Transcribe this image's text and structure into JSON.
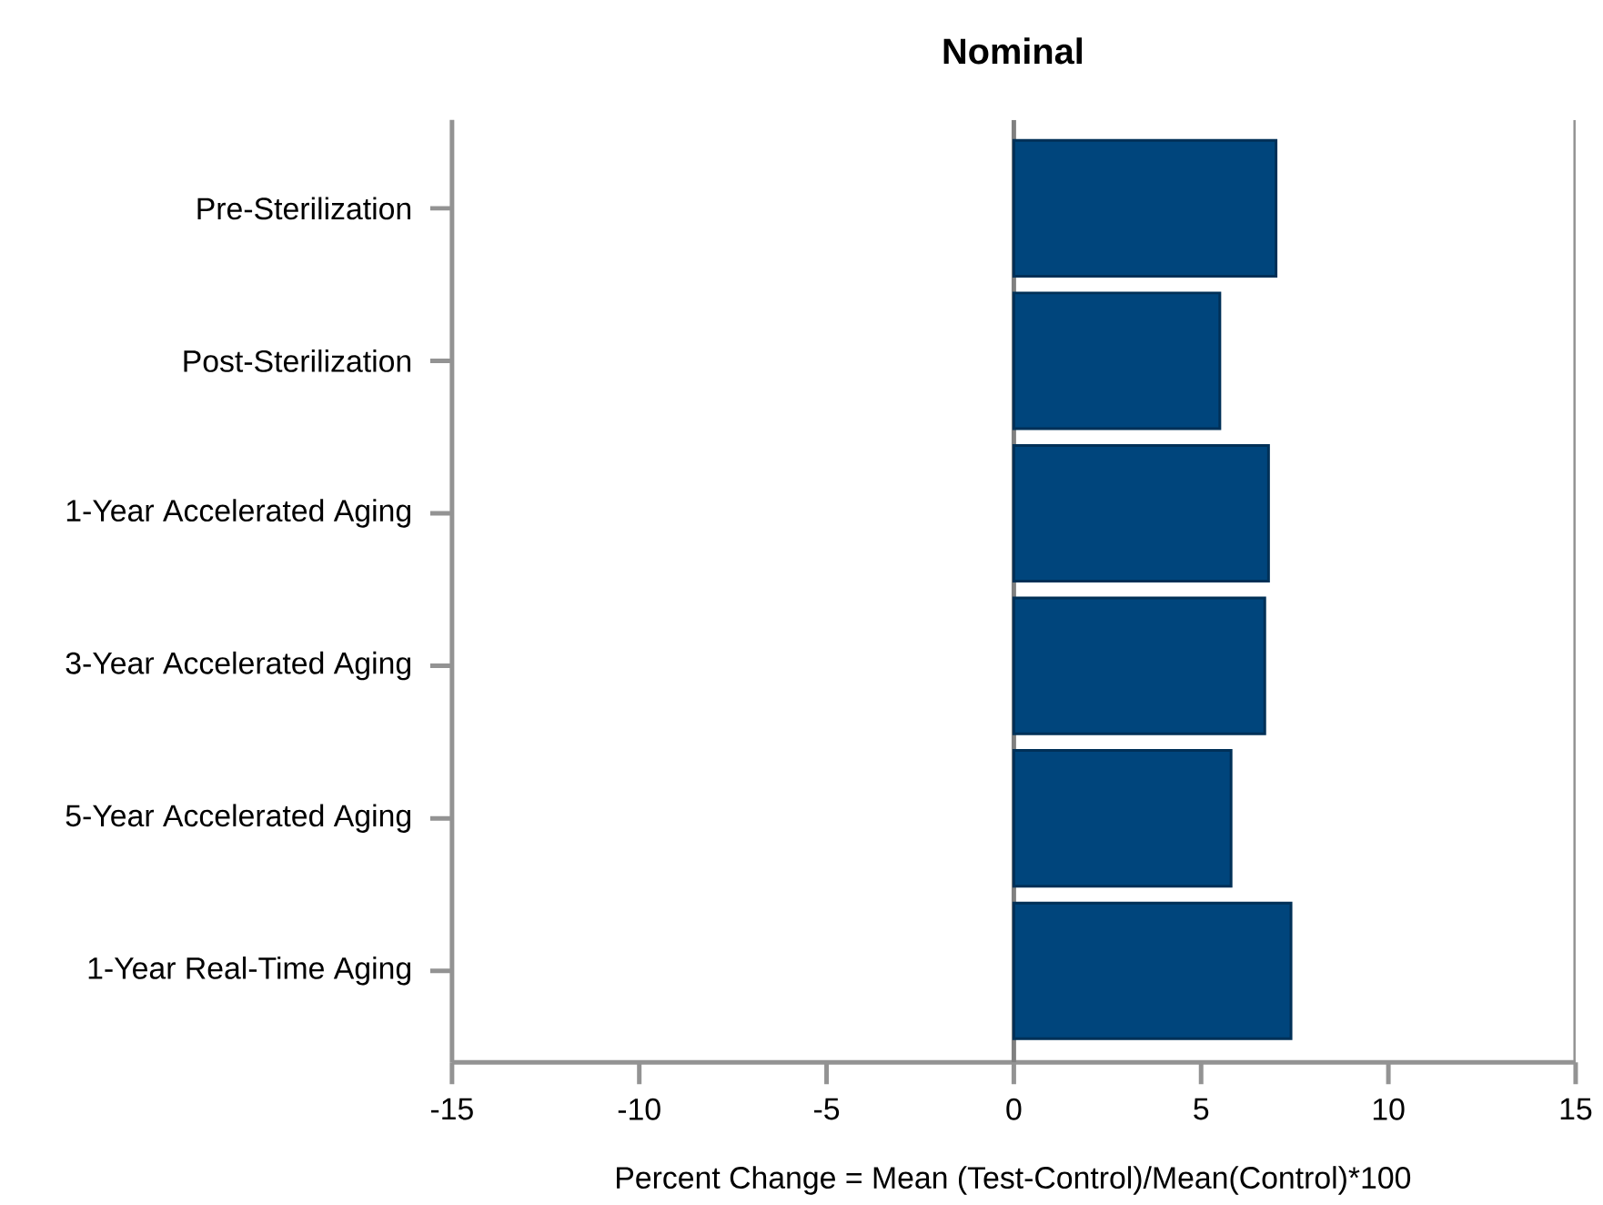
{
  "chart_data": {
    "type": "bar",
    "orientation": "horizontal",
    "title": "Nominal",
    "xlabel": "Percent Change = Mean (Test-Control)/Mean(Control)*100",
    "categories": [
      "Pre-Sterilization",
      "Post-Sterilization",
      "1-Year Accelerated Aging",
      "3-Year Accelerated Aging",
      "5-Year Accelerated Aging",
      "1-Year Real-Time Aging"
    ],
    "values": [
      7.0,
      5.5,
      6.8,
      6.7,
      5.8,
      7.4
    ],
    "color": "#00457c",
    "xlim": [
      -15,
      15
    ],
    "xticks": [
      -15,
      -10,
      -5,
      0,
      5,
      10,
      15
    ],
    "ref_lines": [
      {
        "axis": "x",
        "value": 0,
        "color": "#808080"
      }
    ]
  }
}
